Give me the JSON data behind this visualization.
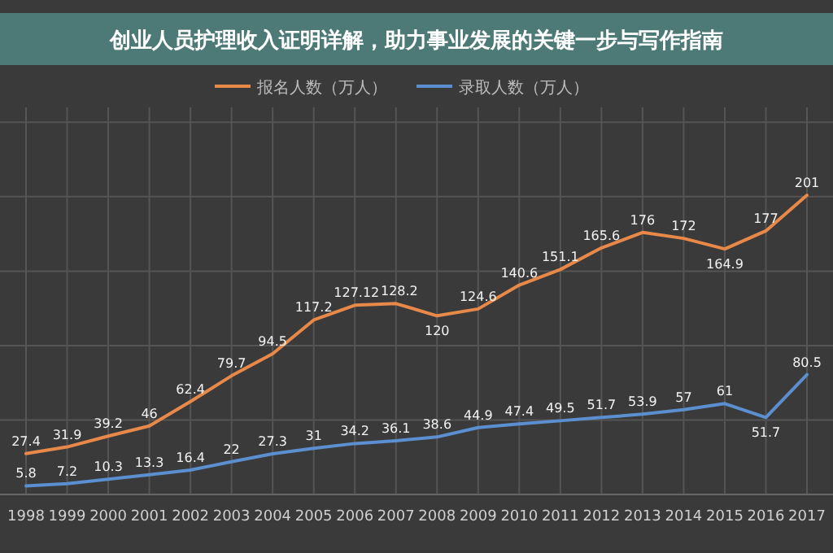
{
  "chart_data": {
    "type": "line",
    "title": "创业人员护理收入证明详解，助力事业发展的关键一步与写作指南",
    "categories": [
      "1998",
      "1999",
      "2000",
      "2001",
      "2002",
      "2003",
      "2004",
      "2005",
      "2006",
      "2007",
      "2008",
      "2009",
      "2010",
      "2011",
      "2012",
      "2013",
      "2014",
      "2015",
      "2016",
      "2017"
    ],
    "series": [
      {
        "name": "报名人数（万人）",
        "color": "#e8894a",
        "values": [
          27.4,
          31.9,
          39.2,
          46,
          62.4,
          79.7,
          94.5,
          117.2,
          127.12,
          128.2,
          120,
          124.6,
          140.6,
          151.1,
          165.6,
          176,
          172,
          164.9,
          177,
          201
        ]
      },
      {
        "name": "录取人数（万人）",
        "color": "#5b8fd0",
        "values": [
          5.8,
          7.2,
          10.3,
          13.3,
          16.4,
          22,
          27.3,
          31,
          34.2,
          36.1,
          38.6,
          44.9,
          47.4,
          49.5,
          51.7,
          53.9,
          57,
          61,
          51.7,
          80.5
        ]
      }
    ],
    "ylim": [
      0,
      260
    ],
    "yticks": [
      {
        "value": 50,
        "label": null
      },
      {
        "value": 100,
        "label": null
      },
      {
        "value": 150,
        "label": null
      },
      {
        "value": 200,
        "label": null
      },
      {
        "value": 250,
        "label": null
      }
    ],
    "tick_labels": "x",
    "grid": true,
    "legend": "top",
    "data_labels": true,
    "marker": "none",
    "line_style": "solid"
  }
}
